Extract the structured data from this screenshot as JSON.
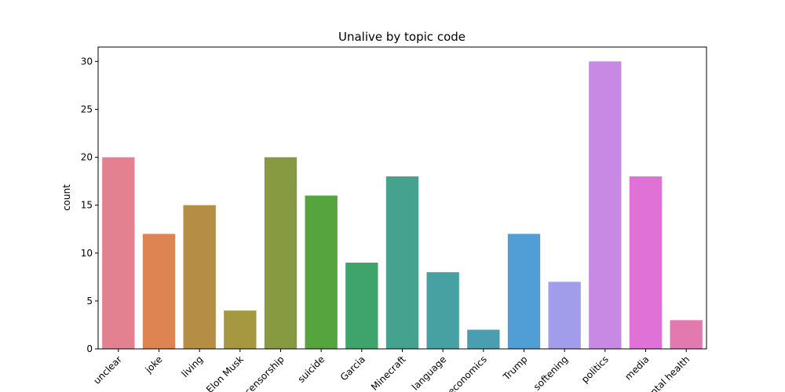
{
  "chart_data": {
    "type": "bar",
    "title": "Unalive by topic code",
    "xlabel": "",
    "ylabel": "count",
    "ylim": [
      0,
      31.5
    ],
    "yticks": [
      0,
      5,
      10,
      15,
      20,
      25,
      30
    ],
    "grid": false,
    "categories": [
      "unclear",
      "joke",
      "living",
      "Elon Musk",
      "censorship",
      "suicide",
      "Garcia",
      "Minecraft",
      "language",
      "economics",
      "Trump",
      "softening",
      "politics",
      "media",
      "mental health"
    ],
    "values": [
      20,
      12,
      15,
      4,
      20,
      16,
      9,
      18,
      8,
      2,
      12,
      7,
      30,
      18,
      3
    ],
    "colors": [
      "#e48191",
      "#dd8452",
      "#b68d45",
      "#a59840",
      "#879a42",
      "#55a43d",
      "#3ea46b",
      "#44a28f",
      "#47a0a1",
      "#4a9eb0",
      "#519dd6",
      "#a19dea",
      "#c889e5",
      "#e071d6",
      "#e27ab0"
    ]
  }
}
